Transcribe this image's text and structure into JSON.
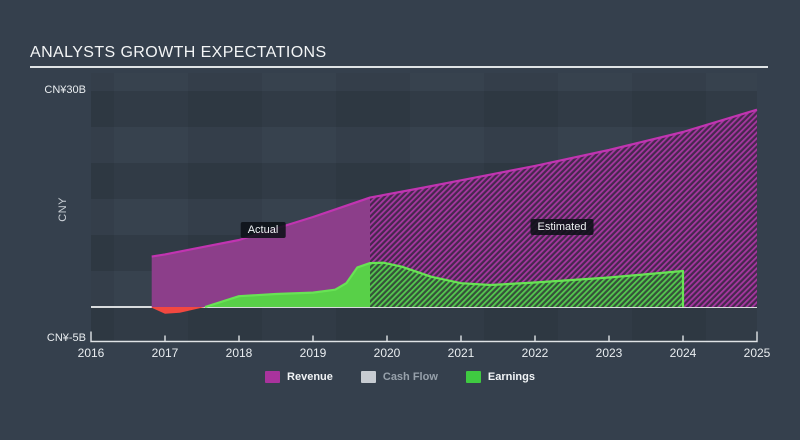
{
  "title": "ANALYSTS GROWTH EXPECTATIONS",
  "y_axis": {
    "top_label": "CN¥30B",
    "bottom_label": "CN¥-5B",
    "axis_title": "CNY"
  },
  "x_axis": {
    "ticks": [
      "2016",
      "2017",
      "2018",
      "2019",
      "2020",
      "2021",
      "2022",
      "2023",
      "2024",
      "2025"
    ]
  },
  "annotations": {
    "actual": "Actual",
    "estimated": "Estimated"
  },
  "legend": [
    {
      "label": "Revenue",
      "swatch_color": "#a9339d",
      "muted": false
    },
    {
      "label": "Cash Flow",
      "swatch_color": "#c7ccd2",
      "muted": true
    },
    {
      "label": "Earnings",
      "swatch_color": "#3fca41",
      "muted": false
    }
  ],
  "colors": {
    "background": "#35404d",
    "plot_base": "#37424e",
    "revenue_fill": "#8c3e8a",
    "revenue_line": "#c134b1",
    "revenue_hatch_base": "#46284e",
    "revenue_hatch_stripe": "#a637a0",
    "earnings_fill": "#58d048",
    "earnings_line": "#68e354",
    "earnings_hatch_base": "#36503a",
    "earnings_hatch_stripe": "#54c94e",
    "negative_fill": "#f24840",
    "zero_line": "#d8dbdd",
    "axis": "#dfe3e6"
  },
  "chart_data": {
    "type": "area",
    "title": "ANALYSTS GROWTH EXPECTATIONS",
    "ylabel": "CNY",
    "y_unit": "CN¥ billions",
    "x_range": [
      2016,
      2025
    ],
    "y_range": [
      -5,
      30
    ],
    "y_gridline_step": 5,
    "legend_position": "bottom",
    "actual_estimated_boundary": 2019.77,
    "earnings_estimate_end": 2024,
    "series": [
      {
        "name": "Revenue",
        "visible": true,
        "actual": [
          [
            2016.82,
            7.0
          ],
          [
            2017.0,
            7.3
          ],
          [
            2017.5,
            8.3
          ],
          [
            2018.0,
            9.3
          ],
          [
            2018.5,
            10.9
          ],
          [
            2019.0,
            12.5
          ],
          [
            2019.4,
            13.9
          ],
          [
            2019.77,
            15.2
          ]
        ],
        "estimated": [
          [
            2019.77,
            15.2
          ],
          [
            2020.5,
            16.6
          ],
          [
            2021.0,
            17.6
          ],
          [
            2022.0,
            19.6
          ],
          [
            2023.0,
            21.8
          ],
          [
            2024.0,
            24.3
          ],
          [
            2025.0,
            27.4
          ]
        ]
      },
      {
        "name": "Cash Flow",
        "visible": false,
        "actual": [],
        "estimated": []
      },
      {
        "name": "Earnings",
        "visible": true,
        "negative_actual": [
          [
            2016.82,
            -0.1
          ],
          [
            2017.0,
            -0.95
          ],
          [
            2017.2,
            -0.8
          ],
          [
            2017.54,
            0.0
          ]
        ],
        "actual": [
          [
            2017.54,
            0.0
          ],
          [
            2018.0,
            1.5
          ],
          [
            2018.5,
            1.8
          ],
          [
            2019.0,
            2.0
          ],
          [
            2019.3,
            2.4
          ],
          [
            2019.45,
            3.3
          ],
          [
            2019.6,
            5.5
          ],
          [
            2019.77,
            6.1
          ]
        ],
        "estimated": [
          [
            2019.77,
            6.1
          ],
          [
            2019.95,
            6.15
          ],
          [
            2020.2,
            5.6
          ],
          [
            2020.6,
            4.2
          ],
          [
            2021.0,
            3.3
          ],
          [
            2021.4,
            3.05
          ],
          [
            2022.0,
            3.4
          ],
          [
            2023.0,
            4.1
          ],
          [
            2024.0,
            5.0
          ]
        ]
      }
    ]
  }
}
